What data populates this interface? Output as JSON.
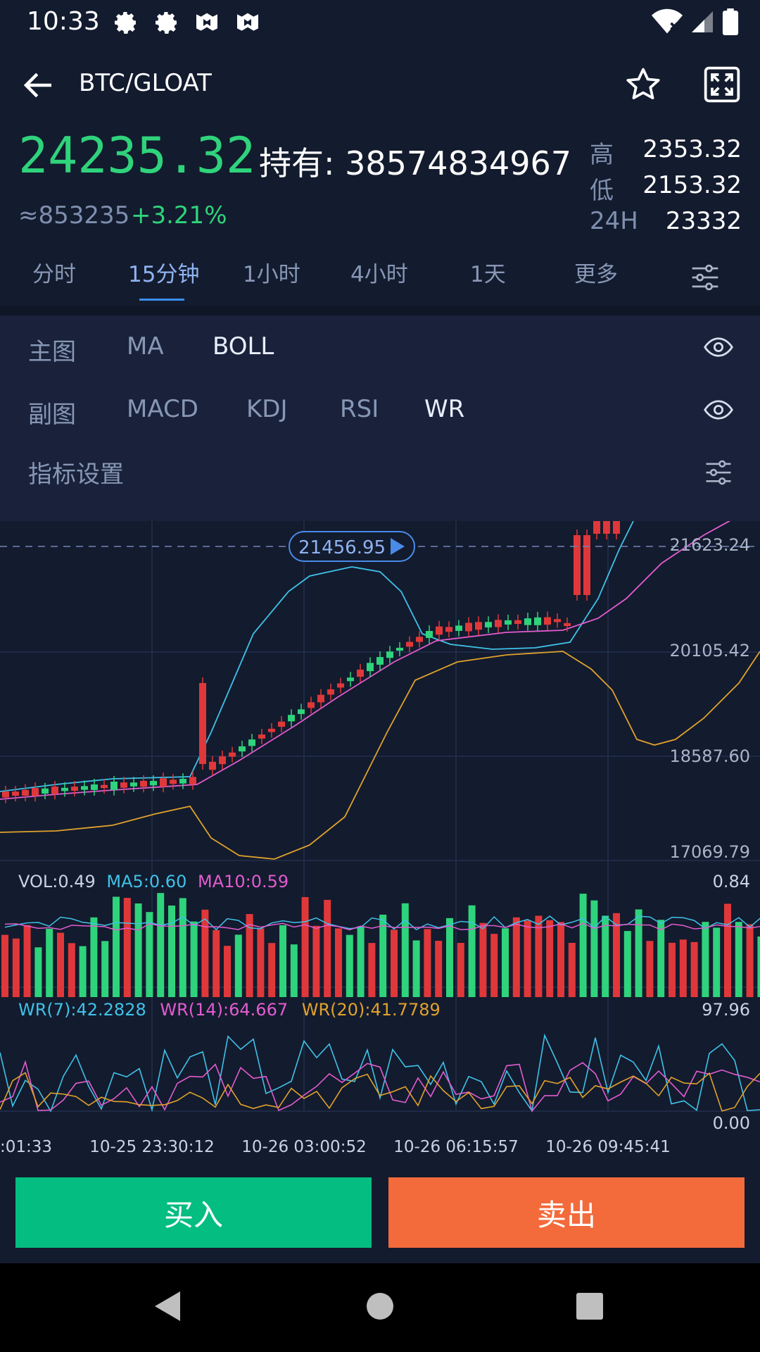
{
  "status_bar": {
    "time": "10:33"
  },
  "header": {
    "pair": "BTC/GLOAT"
  },
  "ticker": {
    "price": "24235.32",
    "holding_label": "持有:",
    "holding_value": "38574834967",
    "approx": "≈853235",
    "change": "+3.21%",
    "high_label": "高",
    "high_value": "2353.32",
    "low_label": "低",
    "low_value": "2153.32",
    "vol_label": "24H",
    "vol_value": "23332"
  },
  "tabs": [
    {
      "label": "分时"
    },
    {
      "label": "15分钟"
    },
    {
      "label": "1小时"
    },
    {
      "label": "4小时"
    },
    {
      "label": "1天"
    },
    {
      "label": "更多"
    }
  ],
  "active_tab": "15分钟",
  "indicator_panel": {
    "main_label": "主图",
    "main_options": [
      "MA",
      "BOLL"
    ],
    "main_selected": "BOLL",
    "sub_label": "副图",
    "sub_options": [
      "MACD",
      "KDJ",
      "RSI",
      "WR"
    ],
    "sub_selected": "WR",
    "settings_label": "指标设置"
  },
  "colors": {
    "up": "#2fd37b",
    "down": "#e0383a",
    "upper": "#3fc2e8",
    "mid": "#e25ccf",
    "lower": "#e0a22c",
    "accent": "#3a8ef0",
    "buy": "#04bd80",
    "sell": "#f36a3b"
  },
  "chart_data": {
    "type": "candlestick",
    "price_axis_labels": [
      "21623.24",
      "20105.42",
      "18587.60",
      "17069.79"
    ],
    "last_price_tag": "21456.95",
    "volume_header": {
      "vol": "VOL:0.49",
      "ma5": "MA5:0.60",
      "ma10": "MA10:0.59"
    },
    "volume_axis_max": "0.84",
    "wr_header": {
      "wr7": "WR(7):42.2828",
      "wr14": "WR(14):64.667",
      "wr20": "WR(20):41.7789"
    },
    "wr_axis_max": "97.96",
    "wr_axis_min": "0.00",
    "time_labels": [
      ":01:33",
      "10-25 23:30:12",
      "10-26 03:00:52",
      "10-26 06:15:57",
      "10-26 09:45:41"
    ]
  },
  "buttons": {
    "buy": "买入",
    "sell": "卖出"
  }
}
